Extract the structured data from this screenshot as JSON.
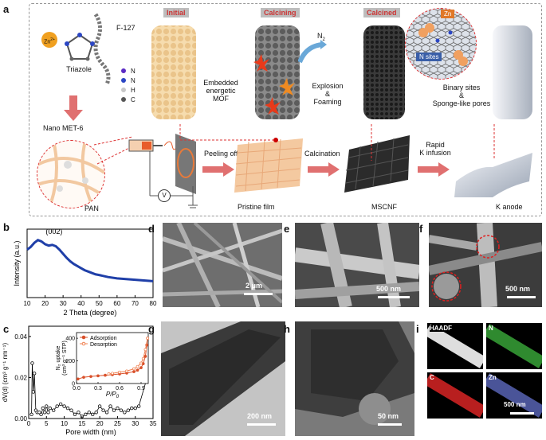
{
  "panel_a": {
    "letter": "a",
    "labels": {
      "zn": "Zn",
      "zn_sup": "2+",
      "triazole": "Triazole",
      "f127": "F-127",
      "nano_met6": "Nano MET-6",
      "pan": "PAN",
      "legend": [
        {
          "text": "N",
          "color": "#5b2bc4"
        },
        {
          "text": "N",
          "color": "#2b46c4"
        },
        {
          "text": "H",
          "color": "#c8c8c8"
        },
        {
          "text": "C",
          "color": "#555555"
        }
      ],
      "initial": "Initial",
      "calcining": "Calcining",
      "calcined": "Calcined",
      "embedded": "Embedded\nenergetic\nMOF",
      "n2": "N",
      "n2_sub": "2",
      "explosion": "Explosion\n&\nFoaming",
      "zn_site": "Zn",
      "n_sites": "N sites",
      "binary": "Binary sites\n&\nSponge-like pores",
      "peeling": "Peeling off",
      "calcination": "Calcination",
      "rapid": "Rapid\nK infusion",
      "pristine": "Pristine film",
      "mscnf": "MSCNF",
      "k_anode": "K anode",
      "voltage": "V"
    }
  },
  "panel_b": {
    "letter": "b",
    "peak_label": "(002)",
    "chart_data": {
      "type": "line",
      "xlabel": "2 Theta (degree)",
      "ylabel": "Intensity (a.u.)",
      "xlim": [
        10,
        80
      ],
      "xticks": [
        "10",
        "20",
        "30",
        "40",
        "50",
        "60",
        "70",
        "80"
      ],
      "x": [
        10,
        12,
        14,
        16,
        18,
        20,
        22,
        24,
        26,
        28,
        30,
        32,
        34,
        36,
        38,
        40,
        42,
        44,
        46,
        48,
        50,
        55,
        60,
        65,
        70,
        75,
        80
      ],
      "y": [
        0.7,
        0.74,
        0.8,
        0.84,
        0.82,
        0.78,
        0.76,
        0.77,
        0.75,
        0.7,
        0.64,
        0.58,
        0.53,
        0.49,
        0.46,
        0.43,
        0.4,
        0.38,
        0.36,
        0.34,
        0.33,
        0.3,
        0.28,
        0.27,
        0.26,
        0.25,
        0.24
      ],
      "color": "#1f3fa8"
    }
  },
  "panel_c": {
    "letter": "c",
    "chart_data": {
      "type": "scatter",
      "xlabel": "Pore width (nm)",
      "ylabel": "dV(d) (cm³ g⁻¹ nm⁻¹)",
      "xlim": [
        0,
        35
      ],
      "ylim": [
        0,
        0.045
      ],
      "xticks": [
        "0",
        "5",
        "10",
        "15",
        "20",
        "25",
        "30",
        "35"
      ],
      "yticks": [
        "0.00",
        "0.02",
        "0.04"
      ],
      "x": [
        0.8,
        1.0,
        1.3,
        1.6,
        2.0,
        2.4,
        3.0,
        3.5,
        4.0,
        4.5,
        5.0,
        5.5,
        6.0,
        7.0,
        8.0,
        9.0,
        10.0,
        11.0,
        12.0,
        13.0,
        14.0,
        15.0,
        16.0,
        17.0,
        18.0,
        19.0,
        20.0,
        21.0,
        22.0,
        23.0,
        24.0,
        25.0,
        26.0,
        27.0,
        28.0,
        29.0,
        30.0,
        31.0,
        33.0
      ],
      "y": [
        0.002,
        0.027,
        0.013,
        0.022,
        0.004,
        0.003,
        0.003,
        0.002,
        0.005,
        0.003,
        0.006,
        0.003,
        0.005,
        0.004,
        0.006,
        0.007,
        0.006,
        0.005,
        0.004,
        0.002,
        0.003,
        0.001,
        0.002,
        0.003,
        0.002,
        0.003,
        0.006,
        0.004,
        0.003,
        0.006,
        0.004,
        0.005,
        0.004,
        0.003,
        0.004,
        0.005,
        0.005,
        0.006,
        0.018
      ],
      "inset": {
        "xlabel": "P/P",
        "xlabel_sub": "0",
        "ylabel": "N₂ uptake\n(cm³ g⁻¹ STP)",
        "xticks": [
          "0.0",
          "0.3",
          "0.6",
          "0.9"
        ],
        "yticks": [
          "0",
          "200",
          "400"
        ],
        "xlim": [
          0,
          1
        ],
        "ylim": [
          0,
          450
        ],
        "series": [
          {
            "name": "Adsorption",
            "color": "#d9502a",
            "x": [
              0.02,
              0.1,
              0.2,
              0.3,
              0.4,
              0.5,
              0.6,
              0.7,
              0.8,
              0.85,
              0.9,
              0.93,
              0.96,
              0.98,
              0.99
            ],
            "y": [
              40,
              55,
              62,
              68,
              73,
              78,
              84,
              92,
              105,
              118,
              140,
              175,
              240,
              340,
              400
            ]
          },
          {
            "name": "Desorption",
            "color": "#f08050",
            "x": [
              0.99,
              0.96,
              0.93,
              0.9,
              0.85,
              0.8,
              0.7,
              0.6,
              0.5,
              0.45
            ],
            "y": [
              400,
              300,
              220,
              180,
              150,
              130,
              110,
              100,
              90,
              85
            ]
          }
        ]
      }
    }
  },
  "panel_d": {
    "letter": "d",
    "scale": "2 μm"
  },
  "panel_e": {
    "letter": "e",
    "scale": "500 nm"
  },
  "panel_f": {
    "letter": "f",
    "scale": "500 nm"
  },
  "panel_g": {
    "letter": "g",
    "scale": "200 nm"
  },
  "panel_h": {
    "letter": "h",
    "scale": "50 nm"
  },
  "panel_i": {
    "letter": "i",
    "scale": "500 nm",
    "maps": [
      {
        "label": "HAADF",
        "color": "#e8e8e8"
      },
      {
        "label": "N",
        "color": "#3dbb3d"
      },
      {
        "label": "C",
        "color": "#d62b2b"
      },
      {
        "label": "Zn",
        "color": "#6f7ac8"
      }
    ]
  }
}
